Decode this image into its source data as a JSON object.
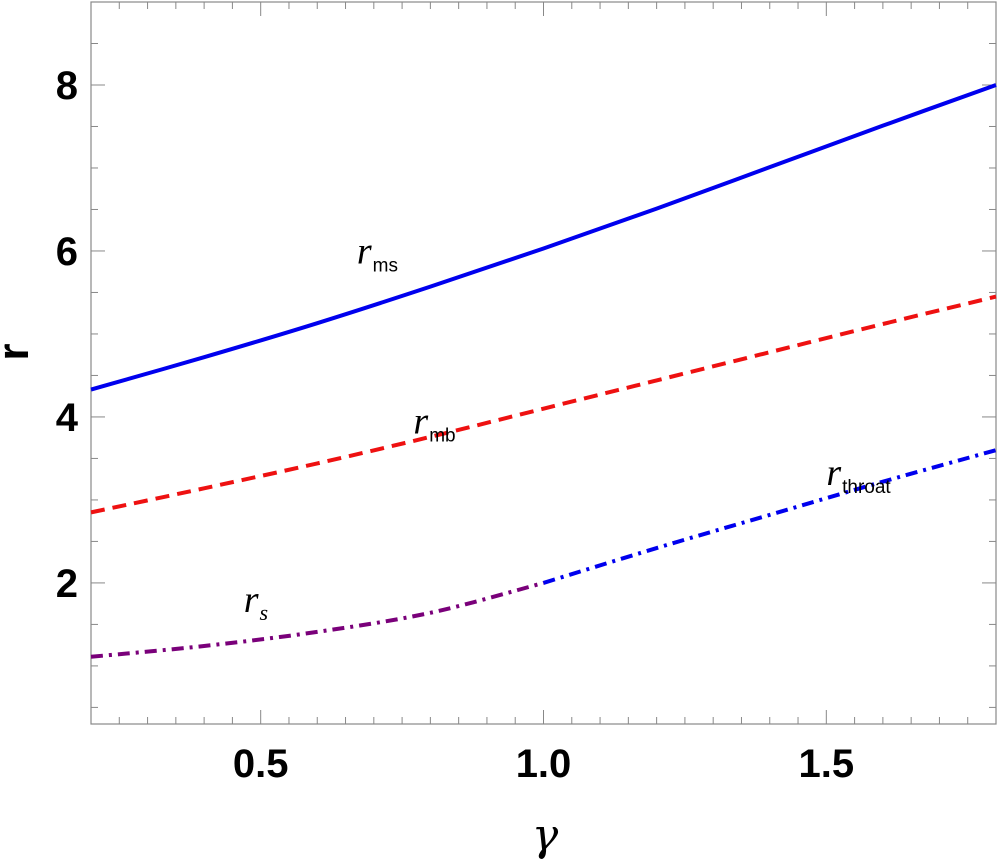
{
  "chart_data": {
    "type": "line",
    "xlabel": "γ",
    "ylabel": "r",
    "xlim": [
      0.2,
      1.8
    ],
    "ylim": [
      0.3,
      9.0
    ],
    "x_ticks": [
      0.5,
      1.0,
      1.5
    ],
    "x_tick_labels": [
      "0.5",
      "1.0",
      "1.5"
    ],
    "y_ticks": [
      2,
      4,
      6,
      8
    ],
    "y_tick_labels": [
      "2",
      "4",
      "6",
      "8"
    ],
    "grid": false,
    "series": [
      {
        "key": "rms",
        "color": "#0000ee",
        "style": "solid",
        "x": [
          0.2,
          0.4,
          0.6,
          0.8,
          1.0,
          1.2,
          1.4,
          1.6,
          1.8
        ],
        "y": [
          4.33,
          4.72,
          5.13,
          5.57,
          6.03,
          6.51,
          7.01,
          7.51,
          8.0
        ]
      },
      {
        "key": "rmb",
        "color": "#ee1111",
        "style": "dashed",
        "x": [
          0.2,
          0.4,
          0.6,
          0.8,
          1.0,
          1.2,
          1.4,
          1.6,
          1.8
        ],
        "y": [
          2.85,
          3.14,
          3.44,
          3.76,
          4.1,
          4.44,
          4.78,
          5.12,
          5.45
        ]
      },
      {
        "key": "rs",
        "color": "#7a007a",
        "style": "dashdot",
        "x": [
          0.2,
          0.4,
          0.6,
          0.8,
          1.0
        ],
        "y": [
          1.11,
          1.24,
          1.41,
          1.64,
          2.0
        ]
      },
      {
        "key": "rthroat",
        "color": "#0000ee",
        "style": "dashdot",
        "x": [
          1.0,
          1.2,
          1.4,
          1.6,
          1.8
        ],
        "y": [
          2.0,
          2.42,
          2.82,
          3.22,
          3.6
        ]
      }
    ],
    "annotations": [
      {
        "key": "rms",
        "main": "r",
        "sub": "ms",
        "x": 0.67,
        "y": 5.85
      },
      {
        "key": "rmb",
        "main": "r",
        "sub": "mb",
        "x": 0.77,
        "y": 3.8
      },
      {
        "key": "rthroat",
        "main": "r",
        "sub": "throat",
        "x": 1.5,
        "y": 3.18
      },
      {
        "key": "rs",
        "main": "r",
        "sub": "s",
        "x": 0.47,
        "y": 1.65
      }
    ]
  }
}
